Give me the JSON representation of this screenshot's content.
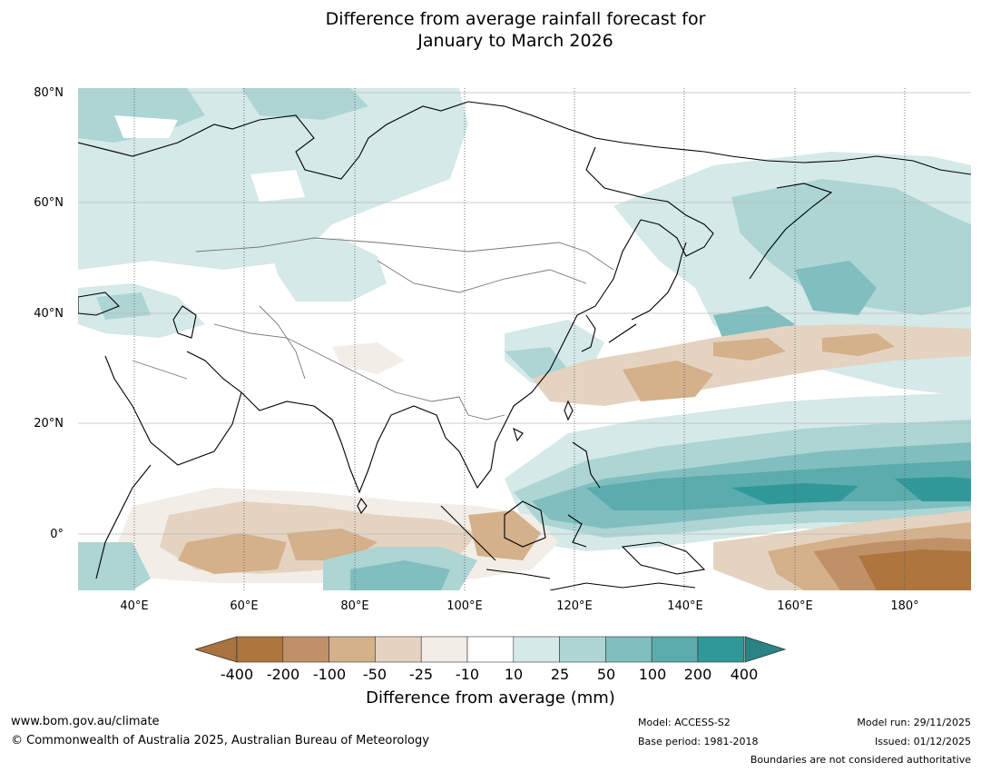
{
  "title": {
    "line1": "Difference from average rainfall forecast for",
    "line2": "January to March 2026"
  },
  "axes": {
    "lat_labels": [
      "80°N",
      "60°N",
      "40°N",
      "20°N",
      "0°"
    ],
    "lon_labels": [
      "40°E",
      "60°E",
      "80°E",
      "100°E",
      "120°E",
      "140°E",
      "160°E",
      "180°"
    ]
  },
  "colorbar": {
    "ticks": [
      "-400",
      "-200",
      "-100",
      "-50",
      "-25",
      "-10",
      "10",
      "25",
      "50",
      "100",
      "200",
      "400"
    ],
    "colors": [
      "#a8733e",
      "#ae753d",
      "#c09167",
      "#d4b08b",
      "#e4d3c0",
      "#f2ede7",
      "#ffffff",
      "#d4e9e8",
      "#acd5d4",
      "#80bebf",
      "#5aacad",
      "#31989a",
      "#2a8486"
    ],
    "label": "Difference from average (mm)"
  },
  "footer": {
    "website": "www.bom.gov.au/climate",
    "copyright": "© Commonwealth of Australia 2025, Australian Bureau of Meteorology",
    "model": "Model: ACCESS-S2",
    "base_period": "Base period: 1981-2018",
    "model_run": "Model run: 29/11/2025",
    "issued": "Issued: 01/12/2025",
    "disclaimer": "Boundaries are not considered authoritative"
  }
}
